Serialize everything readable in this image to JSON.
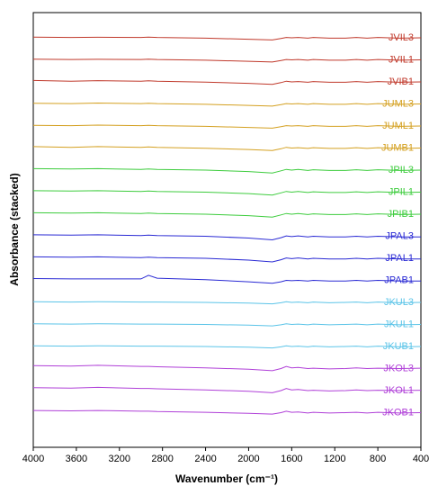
{
  "chart_data": {
    "type": "line",
    "title": "",
    "xlabel": "Wavenumber (cm⁻¹)",
    "ylabel": "Absorbance (stacked)",
    "xlim": [
      4000,
      400
    ],
    "x_reversed": true,
    "xticks": [
      4000,
      3600,
      3200,
      2800,
      2400,
      2000,
      1600,
      1200,
      800,
      400
    ],
    "yticks_shown": false,
    "grid": false,
    "legend": "labels at right end of each trace",
    "series": [
      {
        "name": "JVIL3",
        "color": "#c0392b",
        "offset": 18.0,
        "x": [
          4000,
          3650,
          3400,
          3000,
          2930,
          2850,
          2400,
          2000,
          1780,
          1700,
          1650,
          1600,
          1540,
          1450,
          1400,
          1250,
          1100,
          1000,
          900,
          800,
          600,
          400
        ],
        "values": [
          0.1,
          0.05,
          0.08,
          0.05,
          0.1,
          0.05,
          -0.05,
          -0.2,
          -0.3,
          -0.1,
          0.05,
          0.0,
          0.05,
          -0.05,
          0.05,
          -0.05,
          -0.05,
          0.05,
          -0.05,
          0.05,
          -0.05,
          0.0
        ]
      },
      {
        "name": "JVIL1",
        "color": "#c0392b",
        "offset": 17.0,
        "x": [
          4000,
          3650,
          3400,
          3000,
          2930,
          2850,
          2400,
          2000,
          1780,
          1700,
          1650,
          1600,
          1540,
          1450,
          1400,
          1250,
          1100,
          1000,
          900,
          800,
          600,
          400
        ],
        "values": [
          0.1,
          0.05,
          0.08,
          0.05,
          0.1,
          0.05,
          -0.05,
          -0.2,
          -0.3,
          -0.1,
          0.05,
          0.0,
          0.05,
          -0.05,
          0.05,
          -0.05,
          -0.05,
          0.05,
          -0.05,
          0.05,
          -0.05,
          0.0
        ]
      },
      {
        "name": "JVIB1",
        "color": "#c0392b",
        "offset": 16.0,
        "x": [
          4000,
          3650,
          3400,
          3000,
          2930,
          2850,
          2400,
          2000,
          1780,
          1700,
          1650,
          1600,
          1540,
          1450,
          1400,
          1250,
          1100,
          1000,
          900,
          800,
          600,
          400
        ],
        "values": [
          0.2,
          0.1,
          0.18,
          0.1,
          0.15,
          0.1,
          -0.02,
          -0.2,
          -0.35,
          -0.1,
          0.1,
          0.0,
          0.05,
          -0.05,
          0.05,
          -0.05,
          -0.05,
          0.05,
          -0.05,
          0.05,
          -0.05,
          0.0
        ]
      },
      {
        "name": "JUML3",
        "color": "#d4a020",
        "offset": 15.0,
        "x": [
          4000,
          3650,
          3400,
          3000,
          2930,
          2850,
          2400,
          2000,
          1780,
          1700,
          1650,
          1600,
          1540,
          1450,
          1400,
          1250,
          1100,
          1000,
          900,
          800,
          600,
          400
        ],
        "values": [
          0.1,
          0.05,
          0.12,
          0.05,
          0.1,
          0.05,
          -0.05,
          -0.2,
          -0.3,
          -0.1,
          0.05,
          0.0,
          0.05,
          -0.05,
          0.05,
          -0.05,
          -0.05,
          0.05,
          -0.05,
          0.05,
          -0.05,
          0.0
        ]
      },
      {
        "name": "JUML1",
        "color": "#d4a020",
        "offset": 14.0,
        "x": [
          4000,
          3650,
          3400,
          3000,
          2930,
          2850,
          2400,
          2000,
          1780,
          1700,
          1650,
          1600,
          1540,
          1450,
          1400,
          1250,
          1100,
          1000,
          900,
          800,
          600,
          400
        ],
        "values": [
          0.1,
          0.05,
          0.12,
          0.05,
          0.1,
          0.05,
          -0.05,
          -0.2,
          -0.3,
          -0.1,
          0.05,
          0.0,
          0.05,
          -0.05,
          0.05,
          -0.05,
          -0.05,
          0.05,
          -0.05,
          0.05,
          -0.05,
          0.0
        ]
      },
      {
        "name": "JUMB1",
        "color": "#d4a020",
        "offset": 13.0,
        "x": [
          4000,
          3650,
          3400,
          3000,
          2930,
          2850,
          2400,
          2000,
          1780,
          1700,
          1650,
          1600,
          1540,
          1450,
          1400,
          1250,
          1100,
          1000,
          900,
          800,
          600,
          400
        ],
        "values": [
          0.2,
          0.1,
          0.2,
          0.1,
          0.15,
          0.1,
          -0.02,
          -0.2,
          -0.35,
          -0.1,
          0.1,
          0.0,
          0.05,
          -0.05,
          0.05,
          -0.05,
          -0.05,
          0.05,
          -0.05,
          0.05,
          -0.05,
          0.0
        ]
      },
      {
        "name": "JPIL3",
        "color": "#3dcc3d",
        "offset": 12.0,
        "x": [
          4000,
          3650,
          3400,
          3000,
          2930,
          2850,
          2400,
          2000,
          1780,
          1700,
          1650,
          1600,
          1540,
          1450,
          1400,
          1250,
          1100,
          1000,
          900,
          800,
          600,
          400
        ],
        "values": [
          0.2,
          0.15,
          0.2,
          0.1,
          0.15,
          0.1,
          0.0,
          -0.2,
          -0.4,
          -0.1,
          0.1,
          0.0,
          0.1,
          -0.05,
          0.05,
          -0.05,
          -0.05,
          0.05,
          -0.05,
          0.05,
          -0.05,
          0.0
        ]
      },
      {
        "name": "JPIL1",
        "color": "#3dcc3d",
        "offset": 11.0,
        "x": [
          4000,
          3650,
          3400,
          3000,
          2930,
          2850,
          2400,
          2000,
          1780,
          1700,
          1650,
          1600,
          1540,
          1450,
          1400,
          1250,
          1100,
          1000,
          900,
          800,
          600,
          400
        ],
        "values": [
          0.2,
          0.15,
          0.2,
          0.1,
          0.15,
          0.1,
          0.0,
          -0.2,
          -0.4,
          -0.1,
          0.1,
          0.0,
          0.1,
          -0.05,
          0.05,
          -0.05,
          -0.05,
          0.05,
          -0.05,
          0.05,
          -0.05,
          0.0
        ]
      },
      {
        "name": "JPIB1",
        "color": "#3dcc3d",
        "offset": 10.0,
        "x": [
          4000,
          3650,
          3400,
          3000,
          2930,
          2850,
          2400,
          2000,
          1780,
          1700,
          1650,
          1600,
          1540,
          1450,
          1400,
          1250,
          1100,
          1000,
          900,
          800,
          600,
          400
        ],
        "values": [
          0.2,
          0.15,
          0.2,
          0.1,
          0.15,
          0.1,
          0.0,
          -0.2,
          -0.4,
          -0.1,
          0.1,
          0.0,
          0.1,
          -0.05,
          0.05,
          -0.05,
          -0.05,
          0.05,
          -0.05,
          0.05,
          -0.05,
          0.0
        ]
      },
      {
        "name": "JPAL3",
        "color": "#2a2ad4",
        "offset": 9.0,
        "x": [
          4000,
          3650,
          3400,
          3000,
          2930,
          2850,
          2400,
          2000,
          1780,
          1700,
          1650,
          1600,
          1540,
          1450,
          1400,
          1250,
          1100,
          1000,
          900,
          800,
          600,
          400
        ],
        "values": [
          0.2,
          0.15,
          0.2,
          0.1,
          0.15,
          0.1,
          0.0,
          -0.25,
          -0.5,
          -0.2,
          0.05,
          -0.05,
          0.05,
          -0.1,
          0.0,
          -0.1,
          -0.1,
          0.0,
          -0.1,
          0.0,
          -0.1,
          -0.1
        ]
      },
      {
        "name": "JPAL1",
        "color": "#2a2ad4",
        "offset": 8.0,
        "x": [
          4000,
          3650,
          3400,
          3000,
          2930,
          2850,
          2400,
          2000,
          1780,
          1700,
          1650,
          1600,
          1540,
          1450,
          1400,
          1250,
          1100,
          1000,
          900,
          800,
          600,
          400
        ],
        "values": [
          0.2,
          0.15,
          0.2,
          0.1,
          0.15,
          0.1,
          0.0,
          -0.25,
          -0.5,
          -0.2,
          0.05,
          -0.05,
          0.05,
          -0.1,
          0.0,
          -0.1,
          -0.1,
          0.0,
          -0.1,
          0.0,
          -0.1,
          -0.1
        ]
      },
      {
        "name": "JPAB1",
        "color": "#2a2ad4",
        "offset": 7.0,
        "x": [
          4000,
          3650,
          3400,
          3000,
          2930,
          2850,
          2400,
          2000,
          1780,
          1700,
          1650,
          1600,
          1540,
          1450,
          1400,
          1250,
          1100,
          1000,
          900,
          800,
          600,
          400
        ],
        "values": [
          0.25,
          0.2,
          0.2,
          0.2,
          0.7,
          0.3,
          0.1,
          -0.2,
          -0.4,
          -0.2,
          0.0,
          -0.05,
          0.0,
          -0.1,
          0.0,
          -0.1,
          -0.1,
          0.0,
          -0.1,
          0.0,
          -0.1,
          -0.1
        ]
      },
      {
        "name": "JKUL3",
        "color": "#5bc4e8",
        "offset": 6.0,
        "x": [
          4000,
          3650,
          3400,
          3000,
          2930,
          2850,
          2400,
          2000,
          1780,
          1700,
          1650,
          1600,
          1540,
          1450,
          1400,
          1250,
          1100,
          1000,
          900,
          800,
          600,
          400
        ],
        "values": [
          0.1,
          0.05,
          0.1,
          0.05,
          0.05,
          0.05,
          0.0,
          -0.1,
          -0.2,
          -0.05,
          0.1,
          0.0,
          0.05,
          -0.05,
          0.05,
          -0.05,
          0.0,
          0.05,
          -0.05,
          0.05,
          -0.05,
          0.0
        ]
      },
      {
        "name": "JKUL1",
        "color": "#5bc4e8",
        "offset": 5.0,
        "x": [
          4000,
          3650,
          3400,
          3000,
          2930,
          2850,
          2400,
          2000,
          1780,
          1700,
          1650,
          1600,
          1540,
          1450,
          1400,
          1250,
          1100,
          1000,
          900,
          800,
          600,
          400
        ],
        "values": [
          0.1,
          0.05,
          0.1,
          0.05,
          0.05,
          0.05,
          0.0,
          -0.1,
          -0.2,
          -0.05,
          0.1,
          0.0,
          0.05,
          -0.05,
          0.05,
          -0.05,
          0.0,
          0.05,
          -0.05,
          0.05,
          -0.05,
          0.0
        ]
      },
      {
        "name": "JKUB1",
        "color": "#5bc4e8",
        "offset": 4.0,
        "x": [
          4000,
          3650,
          3400,
          3000,
          2930,
          2850,
          2400,
          2000,
          1780,
          1700,
          1650,
          1600,
          1540,
          1450,
          1400,
          1250,
          1100,
          1000,
          900,
          800,
          600,
          400
        ],
        "values": [
          0.1,
          0.05,
          0.1,
          0.05,
          0.05,
          0.05,
          0.0,
          -0.1,
          -0.2,
          -0.05,
          0.1,
          0.0,
          0.05,
          -0.05,
          0.05,
          -0.05,
          0.0,
          0.05,
          -0.05,
          0.05,
          -0.05,
          0.0
        ]
      },
      {
        "name": "JKOL3",
        "color": "#b040d8",
        "offset": 3.0,
        "x": [
          4000,
          3650,
          3400,
          3000,
          2930,
          2850,
          2400,
          2000,
          1780,
          1700,
          1650,
          1600,
          1540,
          1450,
          1400,
          1250,
          1100,
          1000,
          900,
          800,
          600,
          400
        ],
        "values": [
          0.4,
          0.35,
          0.45,
          0.3,
          0.3,
          0.25,
          0.1,
          -0.1,
          -0.3,
          0.0,
          0.3,
          0.1,
          0.15,
          0.0,
          0.05,
          -0.05,
          0.0,
          0.1,
          0.0,
          0.05,
          0.0,
          0.05
        ]
      },
      {
        "name": "JKOL1",
        "color": "#b040d8",
        "offset": 2.0,
        "x": [
          4000,
          3650,
          3400,
          3000,
          2930,
          2850,
          2400,
          2000,
          1780,
          1700,
          1650,
          1600,
          1540,
          1450,
          1400,
          1250,
          1100,
          1000,
          900,
          800,
          600,
          400
        ],
        "values": [
          0.4,
          0.35,
          0.45,
          0.3,
          0.3,
          0.25,
          0.1,
          -0.1,
          -0.3,
          0.0,
          0.3,
          0.1,
          0.15,
          0.0,
          0.05,
          -0.05,
          0.0,
          0.1,
          0.0,
          0.05,
          0.0,
          0.05
        ]
      },
      {
        "name": "JKOB1",
        "color": "#b040d8",
        "offset": 1.0,
        "x": [
          4000,
          3650,
          3400,
          3000,
          2930,
          2850,
          2400,
          2000,
          1780,
          1700,
          1650,
          1600,
          1540,
          1450,
          1400,
          1250,
          1100,
          1000,
          900,
          800,
          600,
          400
        ],
        "values": [
          0.3,
          0.25,
          0.3,
          0.2,
          0.2,
          0.15,
          0.05,
          -0.1,
          -0.2,
          0.0,
          0.2,
          0.05,
          0.1,
          -0.05,
          0.05,
          -0.05,
          0.0,
          0.05,
          -0.05,
          0.05,
          -0.05,
          0.0
        ]
      }
    ]
  }
}
